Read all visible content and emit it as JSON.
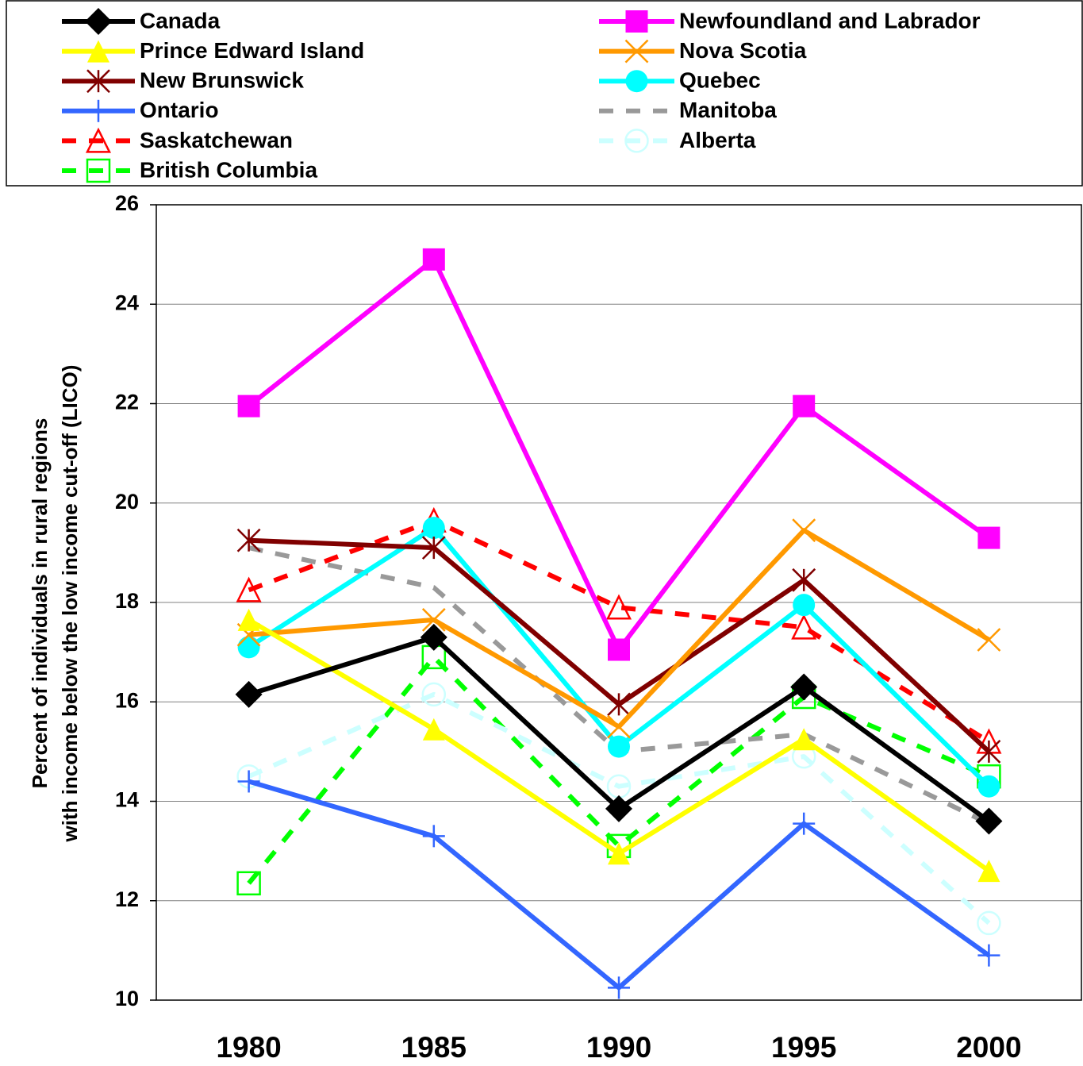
{
  "chart_data": {
    "type": "line",
    "ylabel": [
      "Percent of individuals in rural regions",
      "with income below the low income cut-off (LICO)"
    ],
    "categories": [
      "1980",
      "1985",
      "1990",
      "1995",
      "2000"
    ],
    "ylim": [
      10,
      26
    ],
    "yticks": [
      10,
      12,
      14,
      16,
      18,
      20,
      22,
      24,
      26
    ],
    "grid": true,
    "series": [
      {
        "name": "Canada",
        "color": "#000000",
        "marker": "diamond",
        "dash": false,
        "values": [
          16.15,
          17.3,
          13.85,
          16.3,
          13.6
        ]
      },
      {
        "name": "Newfoundland and Labrador",
        "color": "#ff00ff",
        "marker": "square",
        "dash": false,
        "values": [
          21.95,
          24.9,
          17.05,
          21.95,
          19.3
        ]
      },
      {
        "name": "Prince Edward Island",
        "color": "#ffff00",
        "marker": "triangle",
        "dash": false,
        "values": [
          17.65,
          15.45,
          12.95,
          15.25,
          12.6
        ]
      },
      {
        "name": "Nova Scotia",
        "color": "#ff9900",
        "marker": "x",
        "dash": false,
        "values": [
          17.35,
          17.65,
          15.5,
          19.45,
          17.25
        ]
      },
      {
        "name": "New Brunswick",
        "color": "#800000",
        "marker": "asterisk",
        "dash": false,
        "values": [
          19.25,
          19.1,
          15.95,
          18.45,
          15.0
        ]
      },
      {
        "name": "Quebec",
        "color": "#00ffff",
        "marker": "circle",
        "dash": false,
        "values": [
          17.1,
          19.5,
          15.1,
          17.95,
          14.3
        ]
      },
      {
        "name": "Ontario",
        "color": "#3366ff",
        "marker": "plus",
        "dash": false,
        "values": [
          14.4,
          13.3,
          10.25,
          13.55,
          10.9
        ]
      },
      {
        "name": "Manitoba",
        "color": "#999999",
        "marker": "none",
        "dash": true,
        "values": [
          19.1,
          18.3,
          15.0,
          15.35,
          13.55
        ]
      },
      {
        "name": "Saskatchewan",
        "color": "#ff0000",
        "marker": "triangle-open",
        "dash": true,
        "values": [
          18.25,
          19.65,
          17.9,
          17.5,
          15.2
        ]
      },
      {
        "name": "Alberta",
        "color": "#ccffff",
        "marker": "circle-open",
        "dash": true,
        "values": [
          14.5,
          16.15,
          14.3,
          14.9,
          11.55
        ]
      },
      {
        "name": "British Columbia",
        "color": "#00ff00",
        "marker": "square-open",
        "dash": true,
        "values": [
          12.35,
          16.9,
          13.1,
          16.1,
          14.5
        ]
      }
    ]
  }
}
